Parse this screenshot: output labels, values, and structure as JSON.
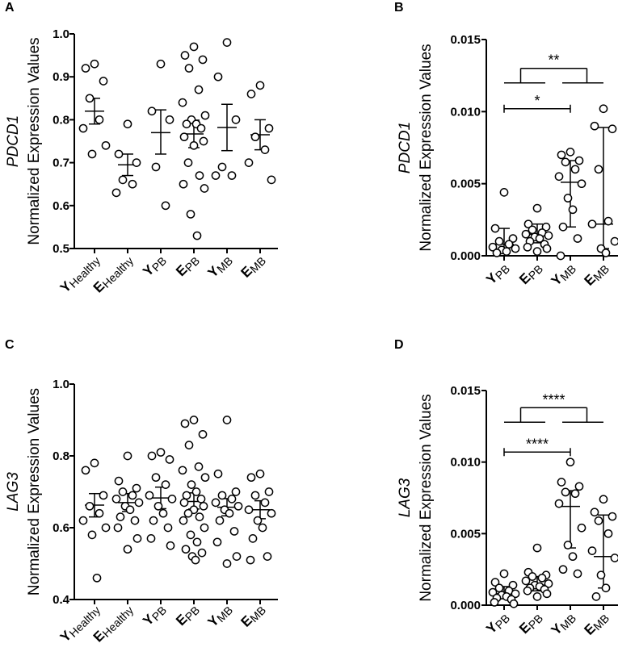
{
  "chart_data": [
    {
      "panel": "A",
      "type": "scatter",
      "gene": "PDCD1",
      "ylabel": "Normalized Expression Values",
      "ylim": [
        0.5,
        1.0
      ],
      "yticks": [
        "0.5",
        "0.6",
        "0.7",
        "0.8",
        "0.9",
        "1.0"
      ],
      "categories": [
        {
          "main": "Y",
          "sub": "Healthy"
        },
        {
          "main": "E",
          "sub": "Healthy"
        },
        {
          "main": "Y",
          "sub": "PB"
        },
        {
          "main": "E",
          "sub": "PB"
        },
        {
          "main": "Y",
          "sub": "MB"
        },
        {
          "main": "E",
          "sub": "MB"
        }
      ],
      "points": [
        [
          0.93,
          0.92,
          0.89,
          0.85,
          0.8,
          0.78,
          0.74,
          0.72
        ],
        [
          0.79,
          0.72,
          0.7,
          0.66,
          0.65,
          0.63
        ],
        [
          0.93,
          0.82,
          0.8,
          0.69,
          0.6
        ],
        [
          0.97,
          0.95,
          0.94,
          0.92,
          0.87,
          0.84,
          0.81,
          0.8,
          0.79,
          0.79,
          0.78,
          0.76,
          0.75,
          0.74,
          0.7,
          0.67,
          0.65,
          0.64,
          0.58,
          0.53
        ],
        [
          0.98,
          0.9,
          0.8,
          0.69,
          0.67,
          0.67
        ],
        [
          0.88,
          0.86,
          0.78,
          0.76,
          0.73,
          0.7,
          0.66
        ]
      ],
      "center": [
        0.82,
        0.695,
        0.77,
        0.767,
        0.782,
        0.765
      ],
      "lower": [
        0.79,
        0.67,
        0.72,
        0.735,
        0.728,
        0.73
      ],
      "upper": [
        0.85,
        0.72,
        0.823,
        0.799,
        0.836,
        0.8
      ],
      "significance": []
    },
    {
      "panel": "B",
      "type": "scatter",
      "gene": "PDCD1",
      "ylabel": "Normalized Expression Values",
      "ylim": [
        0,
        0.015
      ],
      "yticks": [
        "0.000",
        "0.005",
        "0.010",
        "0.015"
      ],
      "categories": [
        {
          "main": "Y",
          "sub": "PB"
        },
        {
          "main": "E",
          "sub": "PB"
        },
        {
          "main": "Y",
          "sub": "MB"
        },
        {
          "main": "E",
          "sub": "MB"
        }
      ],
      "points": [
        [
          0.0044,
          0.0019,
          0.0012,
          0.001,
          0.0008,
          0.0006,
          0.0005,
          0.0004,
          0.0003,
          0.0002
        ],
        [
          0.0033,
          0.0022,
          0.002,
          0.0018,
          0.0016,
          0.0015,
          0.0014,
          0.0013,
          0.0012,
          0.001,
          0.0008,
          0.0006,
          0.0005,
          0.0003
        ],
        [
          0.0072,
          0.007,
          0.0066,
          0.0065,
          0.006,
          0.0055,
          0.005,
          0.004,
          0.0032,
          0.002,
          0.0012,
          0.0
        ],
        [
          0.0102,
          0.009,
          0.0088,
          0.006,
          0.0024,
          0.0022,
          0.001,
          0.0005,
          0.0002
        ]
      ],
      "center": [
        0.0008,
        0.0015,
        0.0051,
        0.0022
      ],
      "lower": [
        0.0003,
        0.0009,
        0.002,
        0.0005
      ],
      "upper": [
        0.0019,
        0.0022,
        0.0066,
        0.0089
      ],
      "significance": [
        {
          "label": "*",
          "type": "simple",
          "from": 0,
          "to": 2,
          "y": 0.0102
        },
        {
          "label": "**",
          "type": "group",
          "groupA": [
            0,
            1
          ],
          "groupB": [
            2,
            3
          ],
          "y": 0.013
        }
      ]
    },
    {
      "panel": "C",
      "type": "scatter",
      "gene": "LAG3",
      "ylabel": "Normalized Expression Values",
      "ylim": [
        0.4,
        1.0
      ],
      "yticks": [
        "0.4",
        "0.6",
        "0.8",
        "1.0"
      ],
      "categories": [
        {
          "main": "Y",
          "sub": "Healthy"
        },
        {
          "main": "E",
          "sub": "Healthy"
        },
        {
          "main": "Y",
          "sub": "PB"
        },
        {
          "main": "E",
          "sub": "PB"
        },
        {
          "main": "Y",
          "sub": "MB"
        },
        {
          "main": "E",
          "sub": "MB"
        }
      ],
      "points": [
        [
          0.78,
          0.76,
          0.69,
          0.66,
          0.64,
          0.62,
          0.6,
          0.58,
          0.46
        ],
        [
          0.8,
          0.73,
          0.71,
          0.7,
          0.69,
          0.68,
          0.67,
          0.66,
          0.65,
          0.63,
          0.62,
          0.6,
          0.57,
          0.54
        ],
        [
          0.81,
          0.8,
          0.79,
          0.74,
          0.72,
          0.69,
          0.68,
          0.66,
          0.64,
          0.62,
          0.6,
          0.57,
          0.55
        ],
        [
          0.9,
          0.89,
          0.86,
          0.83,
          0.77,
          0.76,
          0.74,
          0.72,
          0.7,
          0.69,
          0.68,
          0.67,
          0.66,
          0.65,
          0.64,
          0.63,
          0.62,
          0.6,
          0.58,
          0.56,
          0.54,
          0.53,
          0.52,
          0.51
        ],
        [
          0.9,
          0.75,
          0.7,
          0.69,
          0.68,
          0.67,
          0.66,
          0.65,
          0.64,
          0.62,
          0.59,
          0.56,
          0.52,
          0.5
        ],
        [
          0.75,
          0.74,
          0.7,
          0.69,
          0.67,
          0.65,
          0.64,
          0.62,
          0.6,
          0.57,
          0.52,
          0.51
        ]
      ],
      "center": [
        0.663,
        0.67,
        0.683,
        0.673,
        0.657,
        0.65
      ],
      "lower": [
        0.63,
        0.645,
        0.653,
        0.652,
        0.633,
        0.625
      ],
      "upper": [
        0.695,
        0.695,
        0.713,
        0.697,
        0.681,
        0.675
      ],
      "significance": []
    },
    {
      "panel": "D",
      "type": "scatter",
      "gene": "LAG3",
      "ylabel": "Normalized Expression Values",
      "ylim": [
        0,
        0.015
      ],
      "yticks": [
        "0.000",
        "0.005",
        "0.010",
        "0.015"
      ],
      "categories": [
        {
          "main": "Y",
          "sub": "PB"
        },
        {
          "main": "E",
          "sub": "PB"
        },
        {
          "main": "Y",
          "sub": "MB"
        },
        {
          "main": "E",
          "sub": "MB"
        }
      ],
      "points": [
        [
          0.0022,
          0.0016,
          0.0014,
          0.0012,
          0.001,
          0.0009,
          0.0008,
          0.0007,
          0.0006,
          0.0005,
          0.0004,
          0.0002,
          0.0001
        ],
        [
          0.004,
          0.0023,
          0.0021,
          0.002,
          0.0019,
          0.0017,
          0.0015,
          0.0014,
          0.0013,
          0.0012,
          0.0011,
          0.001,
          0.0008,
          0.0006
        ],
        [
          0.01,
          0.0086,
          0.0083,
          0.0079,
          0.0078,
          0.0071,
          0.0054,
          0.0042,
          0.0034,
          0.0025,
          0.0022
        ],
        [
          0.0074,
          0.0065,
          0.0062,
          0.0059,
          0.005,
          0.0038,
          0.0033,
          0.0021,
          0.0012,
          0.0006
        ]
      ],
      "center": [
        0.0008,
        0.0014,
        0.0069,
        0.0034
      ],
      "lower": [
        0.0005,
        0.001,
        0.004,
        0.0012
      ],
      "upper": [
        0.0013,
        0.002,
        0.008,
        0.0063
      ],
      "significance": [
        {
          "label": "****",
          "type": "simple",
          "from": 0,
          "to": 2,
          "y": 0.0107
        },
        {
          "label": "****",
          "type": "group",
          "groupA": [
            0,
            1
          ],
          "groupB": [
            2,
            3
          ],
          "y": 0.0138
        }
      ]
    }
  ]
}
